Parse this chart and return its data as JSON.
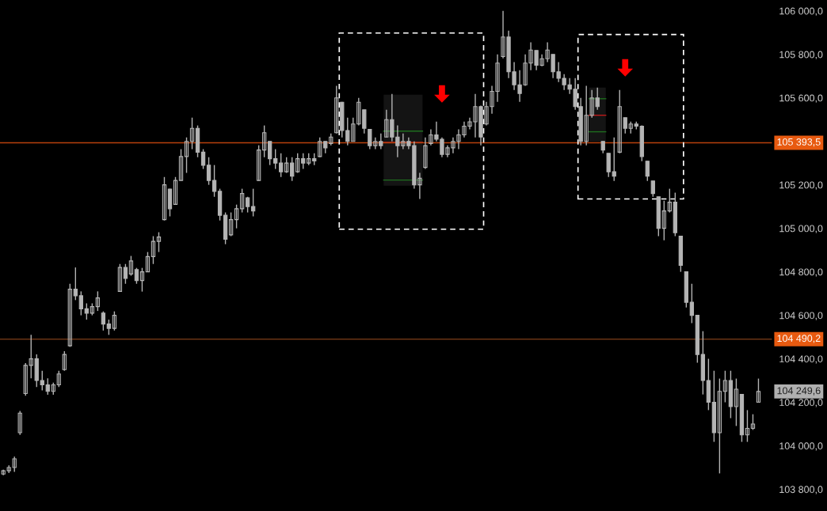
{
  "chart_data": {
    "type": "candlestick",
    "categories": [
      null,
      null,
      null,
      null,
      null,
      null,
      null,
      null,
      null,
      null,
      null,
      null,
      null,
      null,
      null,
      null,
      null,
      null,
      null,
      null,
      null,
      null,
      null,
      null,
      null,
      null,
      null,
      null,
      null,
      null,
      null,
      null,
      null,
      null,
      null,
      null,
      null,
      null,
      null,
      null,
      null,
      null,
      null,
      null,
      null,
      null,
      null,
      null,
      null,
      null,
      null,
      null,
      null,
      null,
      null,
      null,
      null,
      null,
      null,
      null,
      null,
      null,
      null,
      null,
      null,
      null,
      null,
      null,
      null,
      null,
      null,
      null,
      null,
      null,
      null,
      null,
      null,
      null,
      null,
      null,
      null,
      null,
      null,
      null,
      null,
      null,
      null,
      null,
      null,
      null,
      null,
      null,
      null,
      null,
      null,
      null,
      null,
      null,
      null,
      null,
      null,
      null,
      null,
      null,
      null,
      null,
      null,
      null,
      null,
      null,
      null,
      null,
      null,
      null,
      null,
      null,
      null,
      null,
      null,
      null,
      null,
      null,
      null,
      null,
      null,
      null,
      null,
      null,
      null,
      null,
      null,
      null,
      null,
      null,
      null,
      null,
      null
    ],
    "color": "#b4b4b4",
    "ohlc": [
      [
        103870,
        103890,
        103865,
        103885
      ],
      [
        103885,
        103910,
        103875,
        103900
      ],
      [
        103900,
        103950,
        103880,
        103940
      ],
      [
        104060,
        104160,
        104050,
        104150
      ],
      [
        104240,
        104380,
        104230,
        104370
      ],
      [
        104370,
        104510,
        104310,
        104400
      ],
      [
        104400,
        104420,
        104270,
        104300
      ],
      [
        104300,
        104345,
        104255,
        104280
      ],
      [
        104280,
        104310,
        104235,
        104250
      ],
      [
        104250,
        104290,
        104235,
        104280
      ],
      [
        104280,
        104345,
        104270,
        104330
      ],
      [
        104350,
        104435,
        104345,
        104420
      ],
      [
        104460,
        104745,
        104455,
        104720
      ],
      [
        104720,
        104820,
        104670,
        104690
      ],
      [
        104690,
        104710,
        104600,
        104630
      ],
      [
        104630,
        104655,
        104580,
        104610
      ],
      [
        104610,
        104655,
        104600,
        104640
      ],
      [
        104640,
        104710,
        104620,
        104680
      ],
      [
        104610,
        104618,
        104530,
        104560
      ],
      [
        104560,
        104580,
        104510,
        104540
      ],
      [
        104540,
        104618,
        104530,
        104600
      ],
      [
        104710,
        104836,
        104709,
        104820
      ],
      [
        104820,
        104836,
        104745,
        104770
      ],
      [
        104790,
        104873,
        104782,
        104850
      ],
      [
        104810,
        104818,
        104745,
        104760
      ],
      [
        104760,
        104818,
        104709,
        104800
      ],
      [
        104800,
        104891,
        104800,
        104870
      ],
      [
        104870,
        104964,
        104836,
        104940
      ],
      [
        104940,
        104982,
        104891,
        104960
      ],
      [
        105040,
        105236,
        105036,
        105200
      ],
      [
        105180,
        105182,
        105055,
        105090
      ],
      [
        105110,
        105236,
        105109,
        105220
      ],
      [
        105220,
        105364,
        105218,
        105330
      ],
      [
        105330,
        105418,
        105255,
        105400
      ],
      [
        105400,
        105509,
        105364,
        105460
      ],
      [
        105460,
        105473,
        105327,
        105350
      ],
      [
        105350,
        105364,
        105273,
        105290
      ],
      [
        105290,
        105327,
        105200,
        105220
      ],
      [
        105220,
        105291,
        105145,
        105170
      ],
      [
        105170,
        105182,
        105036,
        105060
      ],
      [
        105060,
        105073,
        104927,
        104950
      ],
      [
        104970,
        105073,
        104964,
        105040
      ],
      [
        105040,
        105109,
        105000,
        105090
      ],
      [
        105090,
        105182,
        105073,
        105160
      ],
      [
        105140,
        105145,
        105073,
        105100
      ],
      [
        105100,
        105182,
        105055,
        105080
      ],
      [
        105220,
        105382,
        105218,
        105360
      ],
      [
        105360,
        105473,
        105327,
        105440
      ],
      [
        105400,
        105400,
        105291,
        105320
      ],
      [
        105320,
        105364,
        105273,
        105300
      ],
      [
        105300,
        105345,
        105236,
        105260
      ],
      [
        105260,
        105327,
        105255,
        105300
      ],
      [
        105300,
        105327,
        105218,
        105240
      ],
      [
        105260,
        105345,
        105255,
        105320
      ],
      [
        105320,
        105345,
        105273,
        105300
      ],
      [
        105300,
        105345,
        105291,
        105320
      ],
      [
        105320,
        105345,
        105291,
        105310
      ],
      [
        105330,
        105418,
        105327,
        105400
      ],
      [
        105400,
        105400,
        105345,
        105370
      ],
      [
        105390,
        105436,
        105382,
        105420
      ],
      [
        105440,
        105655,
        105436,
        105600
      ],
      [
        105580,
        105582,
        105418,
        105450
      ],
      [
        105450,
        105509,
        105382,
        105400
      ],
      [
        105400,
        105509,
        105400,
        105480
      ],
      [
        105480,
        105600,
        105473,
        105580
      ],
      [
        105545,
        105545,
        105436,
        105460
      ],
      [
        105455,
        105455,
        105364,
        105380
      ],
      [
        105380,
        105418,
        105364,
        105400
      ],
      [
        105400,
        105436,
        105364,
        105380
      ],
      [
        105420,
        105545,
        105418,
        105500
      ],
      [
        105500,
        105618,
        105400,
        105420
      ],
      [
        105420,
        105473,
        105327,
        105380
      ],
      [
        105380,
        105436,
        105364,
        105400
      ],
      [
        105400,
        105418,
        105364,
        105380
      ],
      [
        105380,
        105400,
        105182,
        105200
      ],
      [
        105200,
        105255,
        105135,
        105230
      ],
      [
        105280,
        105418,
        105273,
        105380
      ],
      [
        105390,
        105455,
        105382,
        105430
      ],
      [
        105430,
        105491,
        105400,
        105410
      ],
      [
        105410,
        105418,
        105327,
        105340
      ],
      [
        105340,
        105382,
        105327,
        105370
      ],
      [
        105370,
        105418,
        105345,
        105400
      ],
      [
        105400,
        105455,
        105364,
        105430
      ],
      [
        105430,
        105491,
        105418,
        105470
      ],
      [
        105470,
        105509,
        105455,
        105490
      ],
      [
        105490,
        105618,
        105418,
        105560
      ],
      [
        105560,
        105564,
        105382,
        105420
      ],
      [
        105480,
        105582,
        105473,
        105560
      ],
      [
        105560,
        105655,
        105527,
        105630
      ],
      [
        105630,
        105800,
        105582,
        105760
      ],
      [
        105790,
        106000,
        105782,
        105880
      ],
      [
        105880,
        105909,
        105691,
        105720
      ],
      [
        105720,
        105764,
        105636,
        105660
      ],
      [
        105660,
        105727,
        105582,
        105620
      ],
      [
        105660,
        105800,
        105655,
        105760
      ],
      [
        105760,
        105855,
        105727,
        105820
      ],
      [
        105818,
        105818,
        105727,
        105750
      ],
      [
        105750,
        105800,
        105745,
        105780
      ],
      [
        105780,
        105855,
        105764,
        105820
      ],
      [
        105800,
        105800,
        105691,
        105720
      ],
      [
        105720,
        105764,
        105673,
        105690
      ],
      [
        105690,
        105709,
        105636,
        105660
      ],
      [
        105660,
        105691,
        105618,
        105640
      ],
      [
        105640,
        105691,
        105545,
        105560
      ],
      [
        105560,
        105600,
        105382,
        105400
      ],
      [
        105400,
        105655,
        105382,
        105520
      ],
      [
        105520,
        105636,
        105509,
        105600
      ],
      [
        105600,
        105647,
        105545,
        105560
      ],
      [
        105400,
        105400,
        105345,
        105360
      ],
      [
        105345,
        105345,
        105236,
        105260
      ],
      [
        105260,
        105418,
        105218,
        105240
      ],
      [
        105350,
        105636,
        105345,
        105560
      ],
      [
        105509,
        105509,
        105436,
        105460
      ],
      [
        105460,
        105491,
        105436,
        105480
      ],
      [
        105480,
        105491,
        105455,
        105470
      ],
      [
        105470,
        105473,
        105309,
        105330
      ],
      [
        105309,
        105309,
        105218,
        105240
      ],
      [
        105218,
        105218,
        105145,
        105160
      ],
      [
        105145,
        105145,
        104964,
        105000
      ],
      [
        105000,
        105127,
        104945,
        105080
      ],
      [
        105080,
        105182,
        105073,
        105120
      ],
      [
        105120,
        105164,
        104964,
        104980
      ],
      [
        104964,
        104964,
        104800,
        104830
      ],
      [
        104800,
        104800,
        104636,
        104660
      ],
      [
        104660,
        104745,
        104564,
        104600
      ],
      [
        104600,
        104600,
        104382,
        104420
      ],
      [
        104420,
        104527,
        104236,
        104300
      ],
      [
        104300,
        104400,
        104164,
        104200
      ],
      [
        104200,
        104345,
        104018,
        104060
      ],
      [
        104060,
        104309,
        103873,
        104250
      ],
      [
        104250,
        104345,
        104200,
        104300
      ],
      [
        104300,
        104345,
        104127,
        104180
      ],
      [
        104180,
        104309,
        104091,
        104260
      ],
      [
        104236,
        104236,
        104018,
        104050
      ],
      [
        104050,
        104164,
        104018,
        104080
      ],
      [
        104080,
        104145,
        104073,
        104100
      ],
      [
        104200,
        104309,
        104200,
        104249.6
      ]
    ],
    "ylim": [
      103700,
      106050
    ],
    "yticks": [
      {
        "value": 103800,
        "label": "103 800,0"
      },
      {
        "value": 104000,
        "label": "104 000,0"
      },
      {
        "value": 104200,
        "label": "104 200,0"
      },
      {
        "value": 104400,
        "label": "104 400,0"
      },
      {
        "value": 104600,
        "label": "104 600,0"
      },
      {
        "value": 104800,
        "label": "104 800,0"
      },
      {
        "value": 105000,
        "label": "105 000,0"
      },
      {
        "value": 105200,
        "label": "105 200,0"
      },
      {
        "value": 105600,
        "label": "105 600,0"
      },
      {
        "value": 105800,
        "label": "105 800,0"
      },
      {
        "value": 106000,
        "label": "106 000,0"
      }
    ],
    "ref_lines": [
      {
        "axis": "y",
        "value": 105393.5,
        "label": "105 393,5",
        "color": "#b8400c"
      },
      {
        "axis": "y",
        "value": 104490.2,
        "label": "104 490,2",
        "color": "#6a3414"
      }
    ],
    "annotations": [
      "104 249,6"
    ],
    "grid": false
  }
}
